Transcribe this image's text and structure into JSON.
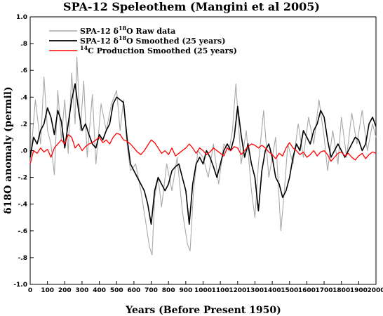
{
  "chart_data": {
    "type": "line",
    "title": "SPA-12 Speleothem (Mangini et al 2005)",
    "xlabel": "Years (Before Present 1950)",
    "ylabel": "δ18O anomaly (permil)",
    "xlim": [
      0,
      2000
    ],
    "ylim": [
      -1.0,
      1.0
    ],
    "x_ticks": [
      0,
      100,
      200,
      300,
      400,
      500,
      600,
      700,
      800,
      900,
      1000,
      1100,
      1200,
      1300,
      1400,
      1500,
      1600,
      1700,
      1800,
      1900,
      2000
    ],
    "y_ticks": [
      1.0,
      0.8,
      0.6,
      0.4,
      0.2,
      0.0,
      -0.2,
      -0.4,
      -0.6,
      -0.8,
      -1.0
    ],
    "y_tick_labels": [
      "1.0",
      ".8",
      ".6",
      ".4",
      ".2",
      ".0",
      "-.2",
      "-.4",
      "-.6",
      "-.8",
      "-1.0"
    ],
    "grid": false,
    "legend_position": "top-left",
    "legend": [
      {
        "prefix": "SPA-12 δ",
        "sup": "18",
        "suffix": "O Raw data"
      },
      {
        "prefix": "SPA-12 δ",
        "sup": "18",
        "suffix": "O Smoothed (25 years)"
      },
      {
        "prefix": "",
        "sup": "14",
        "suffix": "C Production Smoothed (25 years)"
      }
    ],
    "series": [
      {
        "color": "#a8a8a8",
        "x": [
          0,
          30,
          60,
          80,
          100,
          120,
          140,
          160,
          180,
          200,
          220,
          240,
          260,
          270,
          290,
          310,
          330,
          360,
          380,
          410,
          440,
          470,
          500,
          520,
          540,
          560,
          580,
          610,
          640,
          670,
          690,
          705,
          720,
          740,
          760,
          790,
          820,
          850,
          880,
          910,
          925,
          945,
          970,
          1000,
          1030,
          1060,
          1090,
          1120,
          1150,
          1170,
          1190,
          1200,
          1220,
          1250,
          1280,
          1300,
          1320,
          1350,
          1380,
          1420,
          1450,
          1470,
          1490,
          1520,
          1550,
          1580,
          1610,
          1640,
          1670,
          1700,
          1720,
          1750,
          1780,
          1800,
          1830,
          1860,
          1890,
          1920,
          1950,
          1980,
          2000
        ],
        "y": [
          -0.1,
          0.38,
          0.05,
          0.55,
          0.15,
          0.05,
          -0.18,
          0.45,
          0.08,
          0.38,
          -0.02,
          0.58,
          0.2,
          0.7,
          0.15,
          0.52,
          -0.05,
          0.42,
          -0.1,
          0.35,
          0.15,
          0.35,
          0.45,
          0.15,
          0.38,
          0.05,
          -0.15,
          -0.1,
          -0.3,
          -0.55,
          -0.72,
          -0.78,
          -0.35,
          -0.2,
          -0.42,
          -0.1,
          -0.3,
          -0.05,
          -0.45,
          -0.7,
          -0.75,
          -0.3,
          0.0,
          -0.05,
          -0.2,
          0.05,
          -0.25,
          0.05,
          0.0,
          0.15,
          0.5,
          0.3,
          -0.1,
          0.15,
          -0.3,
          -0.5,
          -0.1,
          0.3,
          -0.2,
          0.1,
          -0.6,
          -0.3,
          0.05,
          -0.1,
          0.2,
          -0.05,
          0.25,
          0.05,
          0.38,
          0.1,
          -0.15,
          0.15,
          -0.1,
          0.25,
          -0.05,
          0.28,
          0.05,
          0.3,
          0.0,
          0.2,
          0.1
        ]
      },
      {
        "color": "#000000",
        "x": [
          0,
          20,
          40,
          60,
          80,
          100,
          120,
          140,
          160,
          180,
          200,
          220,
          240,
          260,
          280,
          300,
          320,
          340,
          360,
          380,
          400,
          420,
          440,
          460,
          480,
          500,
          520,
          540,
          560,
          580,
          600,
          620,
          640,
          660,
          680,
          700,
          720,
          740,
          760,
          780,
          800,
          820,
          840,
          860,
          880,
          900,
          920,
          940,
          960,
          980,
          1000,
          1020,
          1040,
          1060,
          1080,
          1100,
          1120,
          1140,
          1160,
          1180,
          1200,
          1220,
          1240,
          1260,
          1280,
          1300,
          1320,
          1340,
          1360,
          1380,
          1400,
          1420,
          1440,
          1460,
          1480,
          1500,
          1520,
          1540,
          1560,
          1580,
          1600,
          1620,
          1640,
          1660,
          1680,
          1700,
          1720,
          1740,
          1760,
          1780,
          1800,
          1820,
          1840,
          1860,
          1880,
          1900,
          1920,
          1940,
          1960,
          1980,
          2000
        ],
        "y": [
          -0.05,
          0.1,
          0.05,
          0.15,
          0.2,
          0.32,
          0.25,
          0.12,
          0.3,
          0.22,
          0.02,
          0.2,
          0.38,
          0.5,
          0.3,
          0.15,
          0.2,
          0.12,
          0.05,
          0.02,
          0.12,
          0.08,
          0.15,
          0.2,
          0.35,
          0.4,
          0.38,
          0.36,
          0.1,
          -0.1,
          -0.15,
          -0.2,
          -0.25,
          -0.3,
          -0.4,
          -0.55,
          -0.3,
          -0.2,
          -0.25,
          -0.3,
          -0.25,
          -0.15,
          -0.12,
          -0.1,
          -0.2,
          -0.3,
          -0.55,
          -0.25,
          -0.1,
          -0.05,
          -0.1,
          0.0,
          -0.05,
          -0.12,
          -0.2,
          -0.1,
          0.0,
          0.05,
          0.0,
          0.1,
          0.33,
          0.12,
          -0.05,
          0.05,
          -0.1,
          -0.2,
          -0.45,
          -0.15,
          0.0,
          0.05,
          -0.05,
          -0.2,
          -0.25,
          -0.35,
          -0.3,
          -0.2,
          -0.05,
          0.05,
          0.0,
          0.15,
          0.1,
          0.05,
          0.15,
          0.2,
          0.3,
          0.25,
          0.08,
          -0.05,
          0.0,
          0.05,
          0.0,
          -0.05,
          0.0,
          0.05,
          0.1,
          0.08,
          0.0,
          0.05,
          0.2,
          0.25,
          0.18
        ]
      },
      {
        "color": "#ff0000",
        "x": [
          0,
          20,
          40,
          60,
          80,
          100,
          120,
          140,
          160,
          180,
          200,
          220,
          240,
          260,
          280,
          300,
          320,
          340,
          360,
          380,
          400,
          420,
          440,
          460,
          480,
          500,
          520,
          540,
          560,
          580,
          600,
          620,
          640,
          660,
          680,
          700,
          720,
          740,
          760,
          780,
          800,
          820,
          840,
          860,
          880,
          900,
          920,
          940,
          960,
          980,
          1000,
          1020,
          1040,
          1060,
          1080,
          1100,
          1120,
          1140,
          1160,
          1180,
          1200,
          1220,
          1240,
          1260,
          1280,
          1300,
          1320,
          1340,
          1360,
          1380,
          1400,
          1420,
          1440,
          1460,
          1480,
          1500,
          1520,
          1540,
          1560,
          1580,
          1600,
          1620,
          1640,
          1660,
          1680,
          1700,
          1720,
          1740,
          1760,
          1780,
          1800,
          1820,
          1840,
          1860,
          1880,
          1900,
          1920,
          1940,
          1960,
          1980,
          2000
        ],
        "y": [
          -0.1,
          0.0,
          -0.02,
          0.02,
          -0.01,
          0.01,
          -0.05,
          0.02,
          0.05,
          0.08,
          0.05,
          0.12,
          0.1,
          0.02,
          0.05,
          0.0,
          0.03,
          0.05,
          0.06,
          0.08,
          0.1,
          0.06,
          0.08,
          0.05,
          0.1,
          0.13,
          0.12,
          0.08,
          0.07,
          0.05,
          0.02,
          -0.01,
          -0.03,
          0.0,
          0.04,
          0.08,
          0.06,
          0.02,
          -0.02,
          0.0,
          -0.03,
          0.02,
          -0.04,
          -0.02,
          0.0,
          0.02,
          0.05,
          0.02,
          -0.02,
          0.02,
          0.0,
          -0.03,
          -0.01,
          0.02,
          0.0,
          -0.02,
          -0.04,
          0.02,
          0.0,
          0.03,
          0.02,
          -0.03,
          0.0,
          0.03,
          0.05,
          0.04,
          0.02,
          0.04,
          0.02,
          -0.01,
          -0.03,
          -0.06,
          -0.02,
          -0.04,
          0.02,
          0.06,
          0.02,
          0.0,
          -0.03,
          -0.01,
          -0.05,
          -0.03,
          0.0,
          -0.04,
          -0.01,
          0.0,
          -0.03,
          -0.08,
          -0.05,
          -0.02,
          -0.01,
          -0.04,
          -0.02,
          -0.05,
          -0.07,
          -0.04,
          -0.02,
          -0.06,
          -0.03,
          -0.01,
          -0.02
        ]
      }
    ]
  }
}
